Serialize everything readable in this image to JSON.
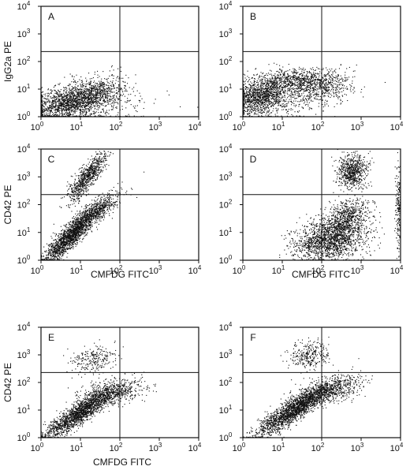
{
  "chart_data": [
    {
      "type": "scatter",
      "panel_label": "A",
      "ylabel": "IgG2a PE",
      "xlabel": "",
      "scale": "log",
      "xlim": [
        1,
        10000
      ],
      "ylim": [
        1,
        10000
      ],
      "x_ticks": [
        {
          "base": "10",
          "exp": "0"
        },
        {
          "base": "10",
          "exp": "1"
        },
        {
          "base": "10",
          "exp": "2"
        },
        {
          "base": "10",
          "exp": "3"
        },
        {
          "base": "10",
          "exp": "4"
        }
      ],
      "y_ticks": [
        {
          "base": "10",
          "exp": "0"
        },
        {
          "base": "10",
          "exp": "1"
        },
        {
          "base": "10",
          "exp": "2"
        },
        {
          "base": "10",
          "exp": "3"
        },
        {
          "base": "10",
          "exp": "4"
        }
      ],
      "quadrant_gate": {
        "x": 100,
        "y": 230
      },
      "populations": [
        {
          "cx": 5,
          "cy": 3,
          "sx": 0.55,
          "sy": 0.33,
          "rho": 0.45,
          "n": 1500
        },
        {
          "cx": 25,
          "cy": 8,
          "sx": 0.4,
          "sy": 0.3,
          "rho": 0.3,
          "n": 500
        },
        {
          "cx": 10,
          "cy": 2,
          "sx": 0.9,
          "sy": 0.4,
          "rho": 0.2,
          "n": 300
        }
      ]
    },
    {
      "type": "scatter",
      "panel_label": "B",
      "ylabel": "",
      "xlabel": "",
      "scale": "log",
      "xlim": [
        1,
        10000
      ],
      "ylim": [
        1,
        10000
      ],
      "x_ticks": [
        {
          "base": "10",
          "exp": "0"
        },
        {
          "base": "10",
          "exp": "1"
        },
        {
          "base": "10",
          "exp": "2"
        },
        {
          "base": "10",
          "exp": "3"
        },
        {
          "base": "10",
          "exp": "4"
        }
      ],
      "y_ticks": [
        {
          "base": "10",
          "exp": "0"
        },
        {
          "base": "10",
          "exp": "1"
        },
        {
          "base": "10",
          "exp": "2"
        },
        {
          "base": "10",
          "exp": "3"
        },
        {
          "base": "10",
          "exp": "4"
        }
      ],
      "quadrant_gate": {
        "x": 100,
        "y": 230
      },
      "populations": [
        {
          "cx": 3,
          "cy": 6,
          "sx": 0.35,
          "sy": 0.32,
          "rho": 0.3,
          "n": 1200
        },
        {
          "cx": 30,
          "cy": 20,
          "sx": 0.55,
          "sy": 0.22,
          "rho": 0.1,
          "n": 800
        },
        {
          "cx": 120,
          "cy": 10,
          "sx": 0.4,
          "sy": 0.3,
          "rho": 0.0,
          "n": 300
        },
        {
          "cx": 8,
          "cy": 3,
          "sx": 0.6,
          "sy": 0.3,
          "rho": 0.2,
          "n": 300
        }
      ]
    },
    {
      "type": "scatter",
      "panel_label": "C",
      "ylabel": "CD42 PE",
      "xlabel": "CMFDG FITC",
      "scale": "log",
      "xlim": [
        1,
        10000
      ],
      "ylim": [
        1,
        10000
      ],
      "x_ticks": [
        {
          "base": "10",
          "exp": "0"
        },
        {
          "base": "10",
          "exp": "1"
        },
        {
          "base": "10",
          "exp": "2"
        },
        {
          "base": "10",
          "exp": "3"
        },
        {
          "base": "10",
          "exp": "4"
        }
      ],
      "y_ticks": [
        {
          "base": "10",
          "exp": "0"
        },
        {
          "base": "10",
          "exp": "1"
        },
        {
          "base": "10",
          "exp": "2"
        },
        {
          "base": "10",
          "exp": "3"
        },
        {
          "base": "10",
          "exp": "4"
        }
      ],
      "quadrant_gate": {
        "x": 100,
        "y": 230
      },
      "populations": [
        {
          "cx": 6,
          "cy": 8,
          "sx": 0.35,
          "sy": 0.5,
          "rho": 0.9,
          "n": 1800
        },
        {
          "cx": 15,
          "cy": 1000,
          "sx": 0.25,
          "sy": 0.45,
          "rho": 0.85,
          "n": 800
        },
        {
          "cx": 30,
          "cy": 70,
          "sx": 0.3,
          "sy": 0.35,
          "rho": 0.8,
          "n": 500
        }
      ]
    },
    {
      "type": "scatter",
      "panel_label": "D",
      "ylabel": "",
      "xlabel": "CMFDG FITC",
      "scale": "log",
      "xlim": [
        1,
        10000
      ],
      "ylim": [
        1,
        10000
      ],
      "x_ticks": [
        {
          "base": "10",
          "exp": "0"
        },
        {
          "base": "10",
          "exp": "1"
        },
        {
          "base": "10",
          "exp": "2"
        },
        {
          "base": "10",
          "exp": "3"
        },
        {
          "base": "10",
          "exp": "4"
        }
      ],
      "y_ticks": [
        {
          "base": "10",
          "exp": "0"
        },
        {
          "base": "10",
          "exp": "1"
        },
        {
          "base": "10",
          "exp": "2"
        },
        {
          "base": "10",
          "exp": "3"
        },
        {
          "base": "10",
          "exp": "4"
        }
      ],
      "quadrant_gate": {
        "x": 100,
        "y": 230
      },
      "populations": [
        {
          "cx": 150,
          "cy": 5,
          "sx": 0.45,
          "sy": 0.35,
          "rho": 0.2,
          "n": 1500
        },
        {
          "cx": 400,
          "cy": 30,
          "sx": 0.3,
          "sy": 0.35,
          "rho": 0.3,
          "n": 800
        },
        {
          "cx": 600,
          "cy": 1600,
          "sx": 0.18,
          "sy": 0.3,
          "rho": 0.1,
          "n": 700
        },
        {
          "cx": 9000,
          "cy": 60,
          "sx": 0.04,
          "sy": 0.8,
          "rho": 0.0,
          "n": 200
        }
      ]
    },
    {
      "type": "scatter",
      "panel_label": "E",
      "ylabel": "CD42 PE",
      "xlabel": "CMFDG FITC",
      "scale": "log",
      "xlim": [
        1,
        10000
      ],
      "ylim": [
        1,
        10000
      ],
      "x_ticks": [
        {
          "base": "10",
          "exp": "0"
        },
        {
          "base": "10",
          "exp": "1"
        },
        {
          "base": "10",
          "exp": "2"
        },
        {
          "base": "10",
          "exp": "3"
        },
        {
          "base": "10",
          "exp": "4"
        }
      ],
      "y_ticks": [
        {
          "base": "10",
          "exp": "0"
        },
        {
          "base": "10",
          "exp": "1"
        },
        {
          "base": "10",
          "exp": "2"
        },
        {
          "base": "10",
          "exp": "3"
        },
        {
          "base": "10",
          "exp": "4"
        }
      ],
      "quadrant_gate": {
        "x": 100,
        "y": 230
      },
      "populations": [
        {
          "cx": 10,
          "cy": 8,
          "sx": 0.45,
          "sy": 0.45,
          "rho": 0.9,
          "n": 1800
        },
        {
          "cx": 60,
          "cy": 40,
          "sx": 0.4,
          "sy": 0.25,
          "rho": 0.5,
          "n": 600
        },
        {
          "cx": 20,
          "cy": 700,
          "sx": 0.3,
          "sy": 0.25,
          "rho": 0.1,
          "n": 250
        }
      ]
    },
    {
      "type": "scatter",
      "panel_label": "F",
      "ylabel": "",
      "xlabel": "",
      "scale": "log",
      "xlim": [
        1,
        10000
      ],
      "ylim": [
        1,
        10000
      ],
      "x_ticks": [
        {
          "base": "10",
          "exp": "0"
        },
        {
          "base": "10",
          "exp": "1"
        },
        {
          "base": "10",
          "exp": "2"
        },
        {
          "base": "10",
          "exp": "3"
        },
        {
          "base": "10",
          "exp": "4"
        }
      ],
      "y_ticks": [
        {
          "base": "10",
          "exp": "0"
        },
        {
          "base": "10",
          "exp": "1"
        },
        {
          "base": "10",
          "exp": "2"
        },
        {
          "base": "10",
          "exp": "3"
        },
        {
          "base": "10",
          "exp": "4"
        }
      ],
      "quadrant_gate": {
        "x": 100,
        "y": 230
      },
      "populations": [
        {
          "cx": 20,
          "cy": 10,
          "sx": 0.45,
          "sy": 0.45,
          "rho": 0.88,
          "n": 2000
        },
        {
          "cx": 150,
          "cy": 50,
          "sx": 0.4,
          "sy": 0.25,
          "rho": 0.5,
          "n": 700
        },
        {
          "cx": 50,
          "cy": 1000,
          "sx": 0.25,
          "sy": 0.25,
          "rho": 0.1,
          "n": 300
        }
      ]
    }
  ],
  "bottom_xlabel": "CMFDG FITC"
}
